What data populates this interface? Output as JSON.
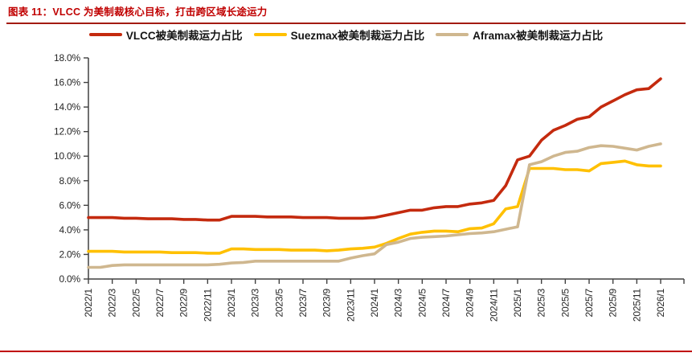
{
  "header": {
    "title": "图表 11：VLCC 为美制裁核心目标，打击跨区域长途运力",
    "title_color": "#C00000",
    "underline_color": "#A31B12"
  },
  "footer": {
    "rule_color": "#C00000"
  },
  "chart_data": {
    "type": "line",
    "title": "",
    "xlabel": "",
    "ylabel": "",
    "ylim": [
      0,
      18
    ],
    "y_tick_step": 2,
    "y_tick_labels": [
      "0.0%",
      "2.0%",
      "4.0%",
      "6.0%",
      "8.0%",
      "10.0%",
      "12.0%",
      "14.0%",
      "16.0%",
      "18.0%"
    ],
    "x_tick_interval_months": 2,
    "grid": false,
    "legend_position": "top",
    "axis_color": "#404040",
    "x": [
      "2022/1",
      "2022/2",
      "2022/3",
      "2022/4",
      "2022/5",
      "2022/6",
      "2022/7",
      "2022/8",
      "2022/9",
      "2022/10",
      "2022/11",
      "2022/12",
      "2023/1",
      "2023/2",
      "2023/3",
      "2023/4",
      "2023/5",
      "2023/6",
      "2023/7",
      "2023/8",
      "2023/9",
      "2023/10",
      "2023/11",
      "2023/12",
      "2024/1",
      "2024/2",
      "2024/3",
      "2024/4",
      "2024/5",
      "2024/6",
      "2024/7",
      "2024/8",
      "2024/9",
      "2024/10",
      "2024/11",
      "2024/12",
      "2025/1",
      "2025/2",
      "2025/3",
      "2025/4",
      "2025/5",
      "2025/6",
      "2025/7",
      "2025/8",
      "2025/9",
      "2025/10",
      "2025/11",
      "2025/12",
      "2026/1"
    ],
    "series": [
      {
        "key": "vlcc",
        "name": "VLCC被美制裁运力占比",
        "color": "#C42A0E",
        "values": [
          5.0,
          5.0,
          5.0,
          4.95,
          4.95,
          4.9,
          4.9,
          4.9,
          4.85,
          4.85,
          4.8,
          4.8,
          5.1,
          5.1,
          5.1,
          5.05,
          5.05,
          5.05,
          5.0,
          5.0,
          5.0,
          4.95,
          4.95,
          4.95,
          5.0,
          5.2,
          5.4,
          5.6,
          5.6,
          5.8,
          5.9,
          5.9,
          6.1,
          6.2,
          6.4,
          7.6,
          9.7,
          10.0,
          11.3,
          12.1,
          12.5,
          13.0,
          13.2,
          14.0,
          14.5,
          15.0,
          15.4,
          15.5,
          16.3
        ]
      },
      {
        "key": "suezmax",
        "name": "Suezmax被美制裁运力占比",
        "color": "#FFC000",
        "values": [
          2.25,
          2.25,
          2.25,
          2.2,
          2.2,
          2.2,
          2.2,
          2.15,
          2.15,
          2.15,
          2.1,
          2.1,
          2.45,
          2.45,
          2.4,
          2.4,
          2.4,
          2.35,
          2.35,
          2.35,
          2.3,
          2.35,
          2.45,
          2.5,
          2.6,
          2.9,
          3.3,
          3.65,
          3.8,
          3.9,
          3.9,
          3.85,
          4.1,
          4.15,
          4.5,
          5.7,
          5.9,
          9.0,
          9.0,
          9.0,
          8.9,
          8.9,
          8.8,
          9.4,
          9.5,
          9.6,
          9.3,
          9.2,
          9.2
        ]
      },
      {
        "key": "aframax",
        "name": "Aframax被美制裁运力占比",
        "color": "#CFB78F",
        "values": [
          0.95,
          0.95,
          1.1,
          1.15,
          1.15,
          1.15,
          1.15,
          1.15,
          1.15,
          1.15,
          1.15,
          1.2,
          1.3,
          1.35,
          1.45,
          1.45,
          1.45,
          1.45,
          1.45,
          1.45,
          1.45,
          1.45,
          1.7,
          1.9,
          2.05,
          2.8,
          3.0,
          3.3,
          3.4,
          3.45,
          3.5,
          3.6,
          3.7,
          3.75,
          3.85,
          4.05,
          4.25,
          9.3,
          9.55,
          10.0,
          10.3,
          10.4,
          10.7,
          10.85,
          10.8,
          10.65,
          10.5,
          10.8,
          11.0
        ]
      }
    ]
  }
}
